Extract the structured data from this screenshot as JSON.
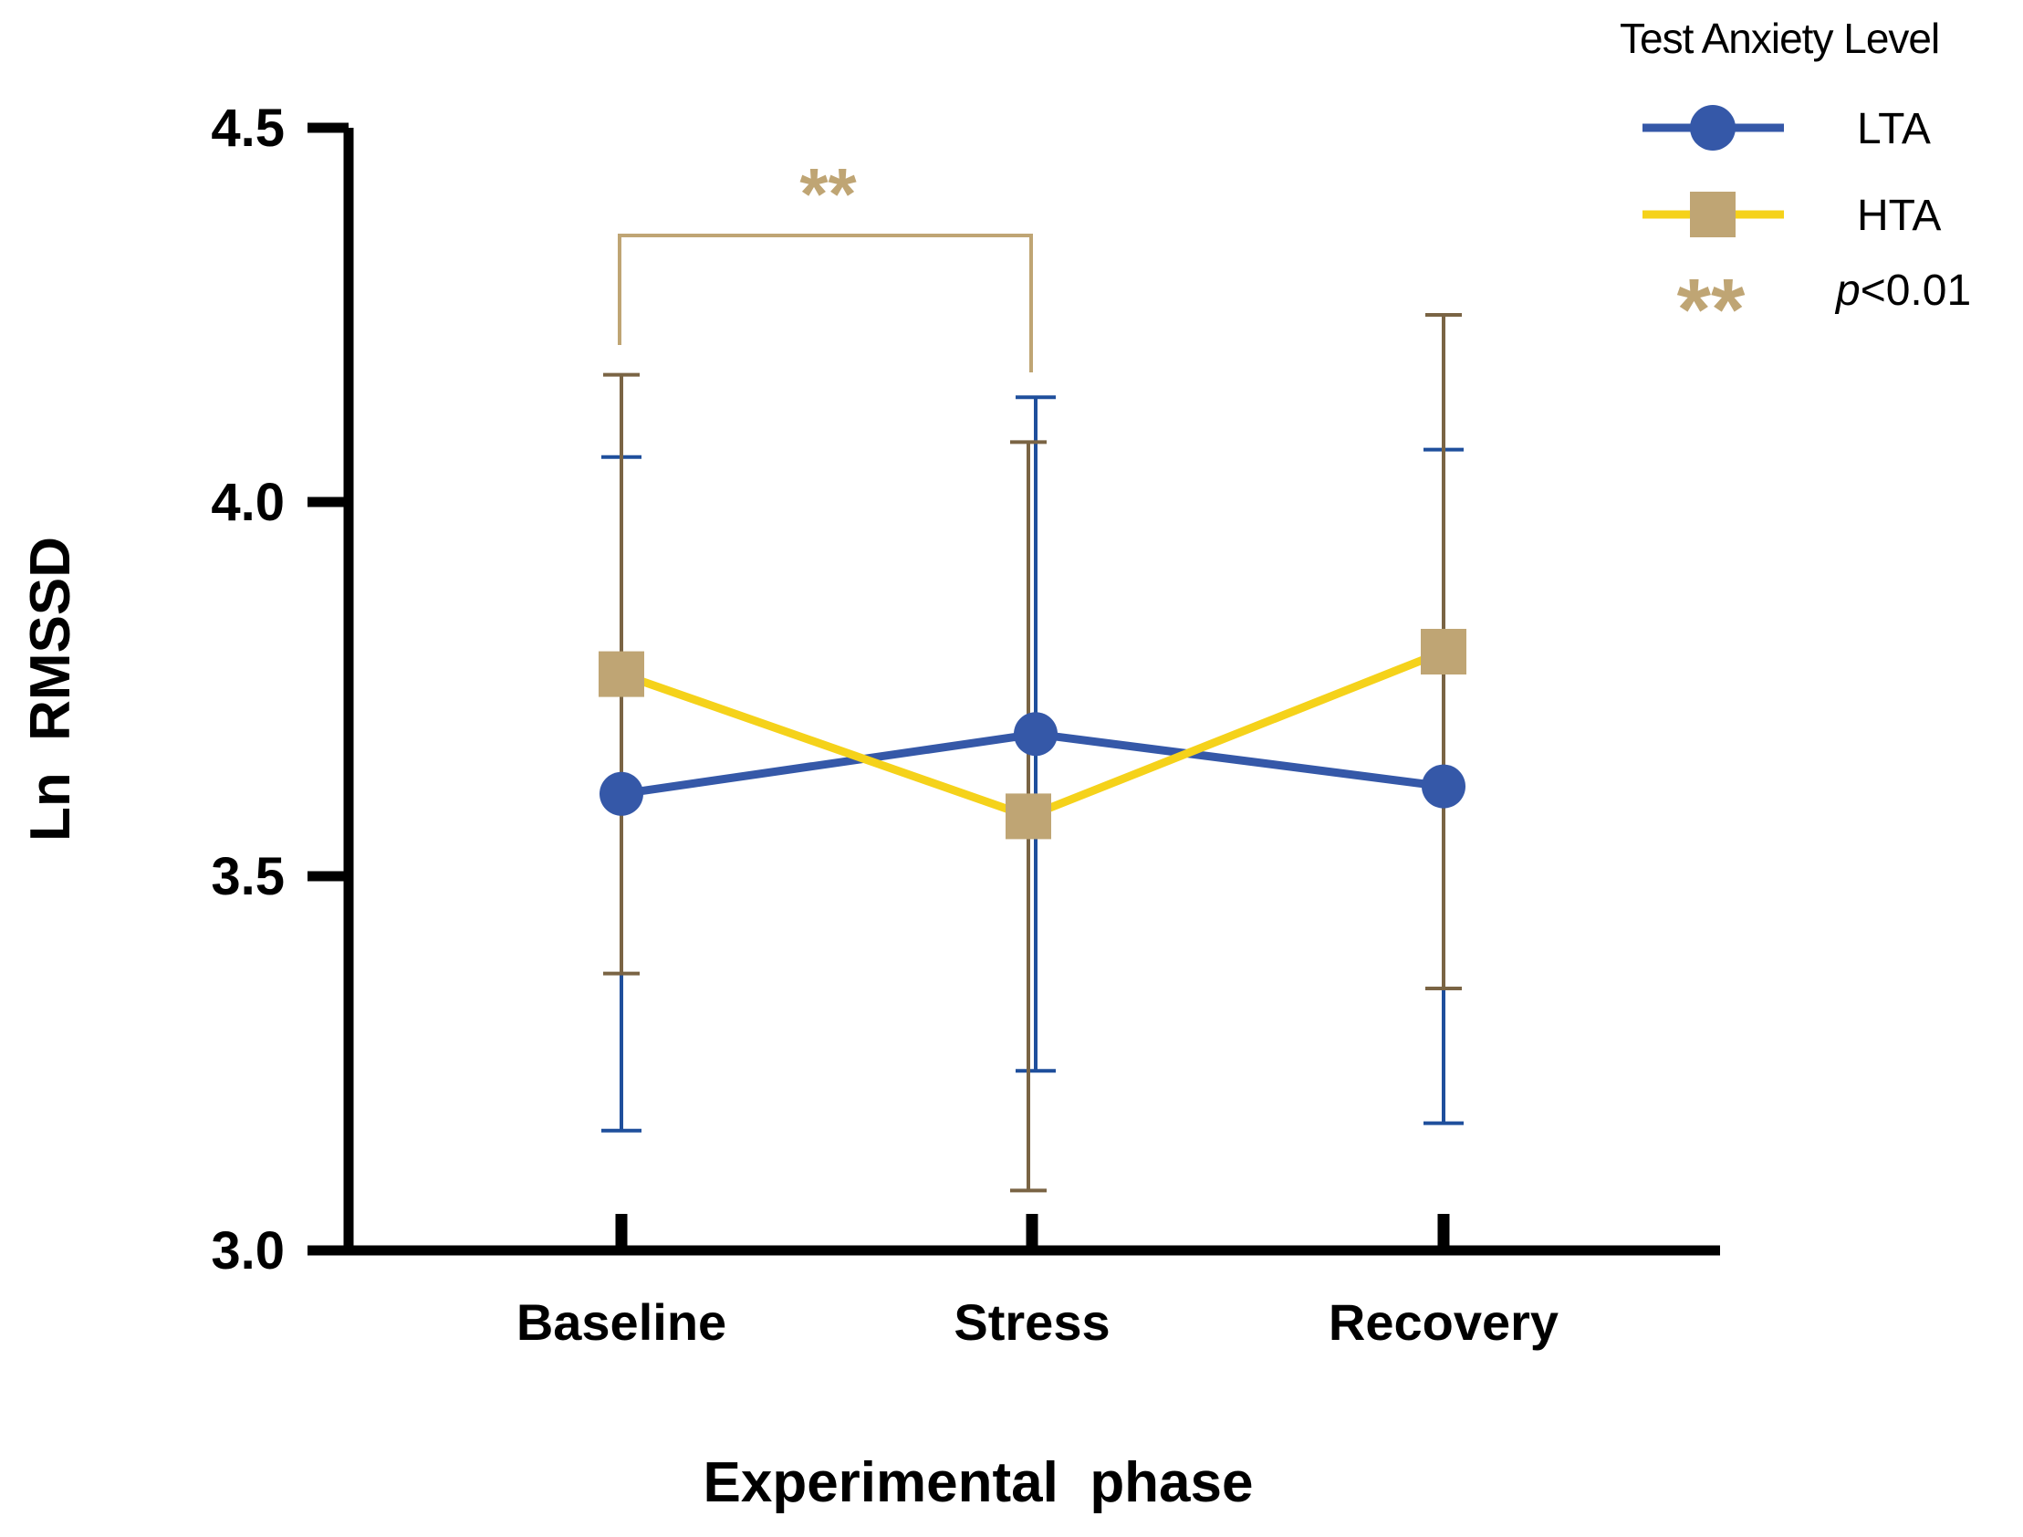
{
  "chart_data": {
    "type": "line",
    "xlabel": "Experimental  phase",
    "ylabel": "Ln  RMSSD",
    "categories": [
      "Baseline",
      "Stress",
      "Recovery"
    ],
    "ylim": [
      3.0,
      4.5
    ],
    "yticks": [
      "3.0",
      "3.5",
      "4.0",
      "4.5"
    ],
    "legend_title": "Test Anxiety Level",
    "legend_position": "top-right",
    "series": [
      {
        "name": "LTA",
        "marker": "circle",
        "color": "#3558a8",
        "error_color": "#1f4f9c",
        "values": [
          3.61,
          3.69,
          3.62
        ],
        "error_low": [
          3.16,
          3.24,
          3.17
        ],
        "error_high": [
          4.06,
          4.14,
          4.07
        ]
      },
      {
        "name": "HTA",
        "marker": "square",
        "color": "#f5d21a",
        "marker_color": "#bfa574",
        "error_color": "#7a6444",
        "values": [
          3.77,
          3.58,
          3.8
        ],
        "error_low": [
          3.37,
          3.08,
          3.35
        ],
        "error_high": [
          4.17,
          4.08,
          4.25
        ]
      }
    ],
    "annotations": {
      "significance_bracket": {
        "from": "Baseline",
        "to": "Stress",
        "label": "**",
        "color": "#bfa574"
      },
      "legend_note": {
        "symbol": "**",
        "p": "p",
        "text": "<0.01"
      }
    }
  }
}
